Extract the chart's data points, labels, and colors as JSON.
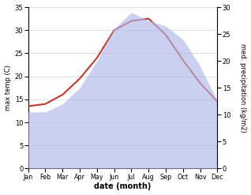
{
  "months": [
    "Jan",
    "Feb",
    "Mar",
    "Apr",
    "May",
    "Jun",
    "Jul",
    "Aug",
    "Sep",
    "Oct",
    "Nov",
    "Dec"
  ],
  "temp_max": [
    13.5,
    14.0,
    16.0,
    19.5,
    24.0,
    30.0,
    32.0,
    32.5,
    29.0,
    23.5,
    18.5,
    14.5
  ],
  "precipitation": [
    10.5,
    10.5,
    12.0,
    15.0,
    20.0,
    26.0,
    29.0,
    27.5,
    26.5,
    24.0,
    19.0,
    12.5
  ],
  "temp_color": "#c0392b",
  "precip_color": "#b0b8e8",
  "temp_ylim": [
    0,
    35
  ],
  "precip_ylim": [
    0,
    30
  ],
  "temp_yticks": [
    0,
    5,
    10,
    15,
    20,
    25,
    30,
    35
  ],
  "precip_yticks": [
    0,
    5,
    10,
    15,
    20,
    25,
    30
  ],
  "xlabel": "date (month)",
  "ylabel_left": "max temp (C)",
  "ylabel_right": "med. precipitation (kg/m2)",
  "background_color": "#ffffff",
  "grid_color": "#d0d0d0"
}
